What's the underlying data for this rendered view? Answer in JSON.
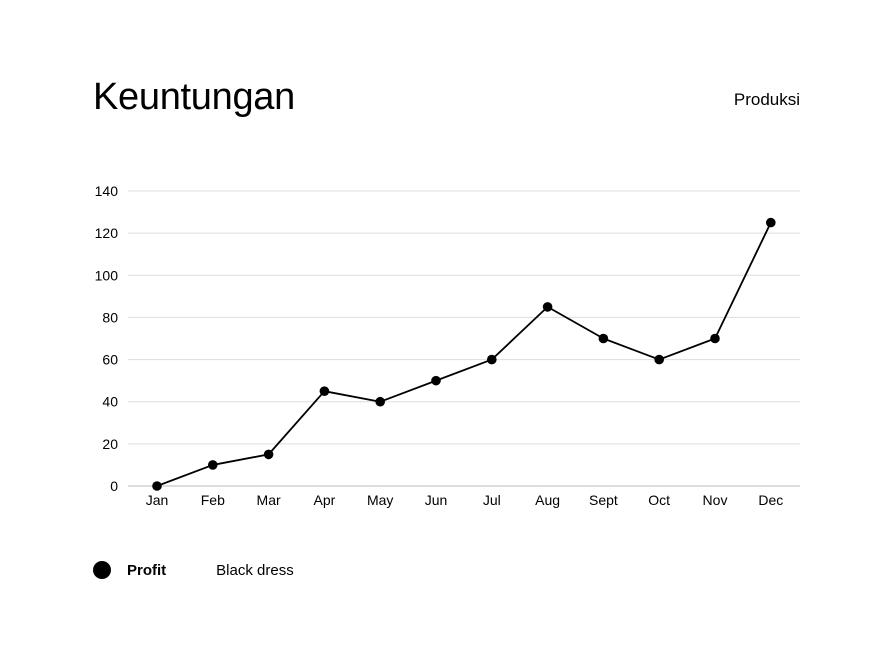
{
  "header": {
    "title": "Keuntungan",
    "subtitle": "Produksi"
  },
  "legend": {
    "series_name": "Profit",
    "series_detail": "Black dress"
  },
  "colors": {
    "line": "#000000",
    "grid": "#dddddd",
    "axis": "#bbbbbb"
  },
  "chart_data": {
    "type": "line",
    "title": "Keuntungan",
    "subtitle": "Produksi",
    "categories": [
      "Jan",
      "Feb",
      "Mar",
      "Apr",
      "May",
      "Jun",
      "Jul",
      "Aug",
      "Sept",
      "Oct",
      "Nov",
      "Dec"
    ],
    "series": [
      {
        "name": "Profit",
        "values": [
          0,
          10,
          15,
          45,
          40,
          50,
          60,
          85,
          70,
          60,
          70,
          125
        ]
      }
    ],
    "ylim": [
      0,
      140
    ],
    "yticks": [
      0,
      20,
      40,
      60,
      80,
      100,
      120,
      140
    ],
    "grid": true,
    "legend_position": "bottom-left"
  }
}
